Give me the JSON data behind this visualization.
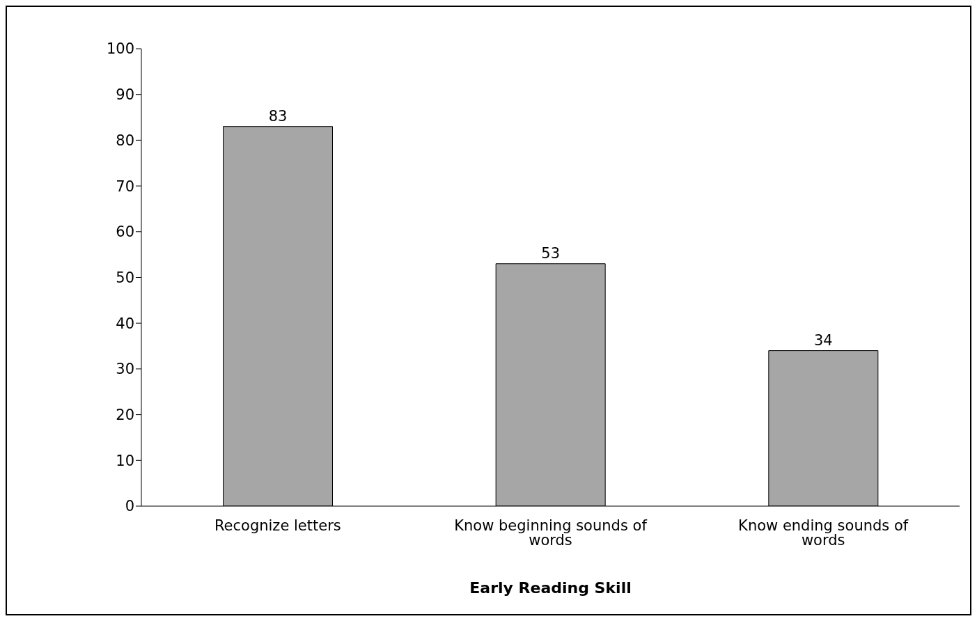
{
  "chart_data": {
    "type": "bar",
    "xlabel": "Early Reading Skill",
    "categories": [
      "Recognize letters",
      "Know beginning sounds of words",
      "Know ending sounds of words"
    ],
    "values": [
      83,
      53,
      34
    ],
    "color": "#a6a6a6",
    "ylim": [
      0,
      100
    ],
    "yticks": [
      0,
      10,
      20,
      30,
      40,
      50,
      60,
      70,
      80,
      90,
      100
    ],
    "grid": false,
    "data_labels": true
  }
}
